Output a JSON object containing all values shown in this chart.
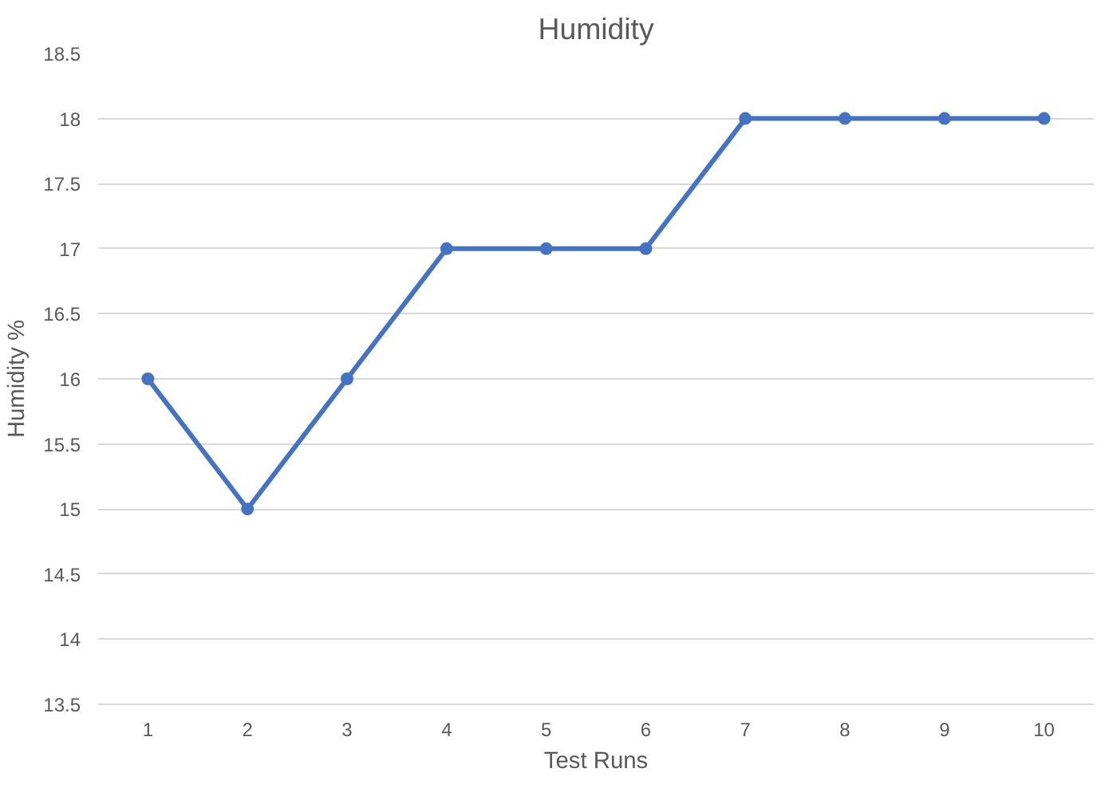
{
  "chart_data": {
    "type": "line",
    "title": "Humidity",
    "xlabel": "Test Runs",
    "ylabel": "Humidity %",
    "categories": [
      "1",
      "2",
      "3",
      "4",
      "5",
      "6",
      "7",
      "8",
      "9",
      "10"
    ],
    "series": [
      {
        "color": "#4472c4",
        "values": [
          16,
          15,
          16,
          17,
          17,
          17,
          18,
          18,
          18,
          18
        ]
      }
    ],
    "ylim": [
      13.5,
      18.5
    ],
    "yticks": [
      13.5,
      14,
      14.5,
      15,
      15.5,
      16,
      16.5,
      17,
      17.5,
      18,
      18.5
    ],
    "grid": "y",
    "marker": "circle",
    "line_style": "solid"
  }
}
